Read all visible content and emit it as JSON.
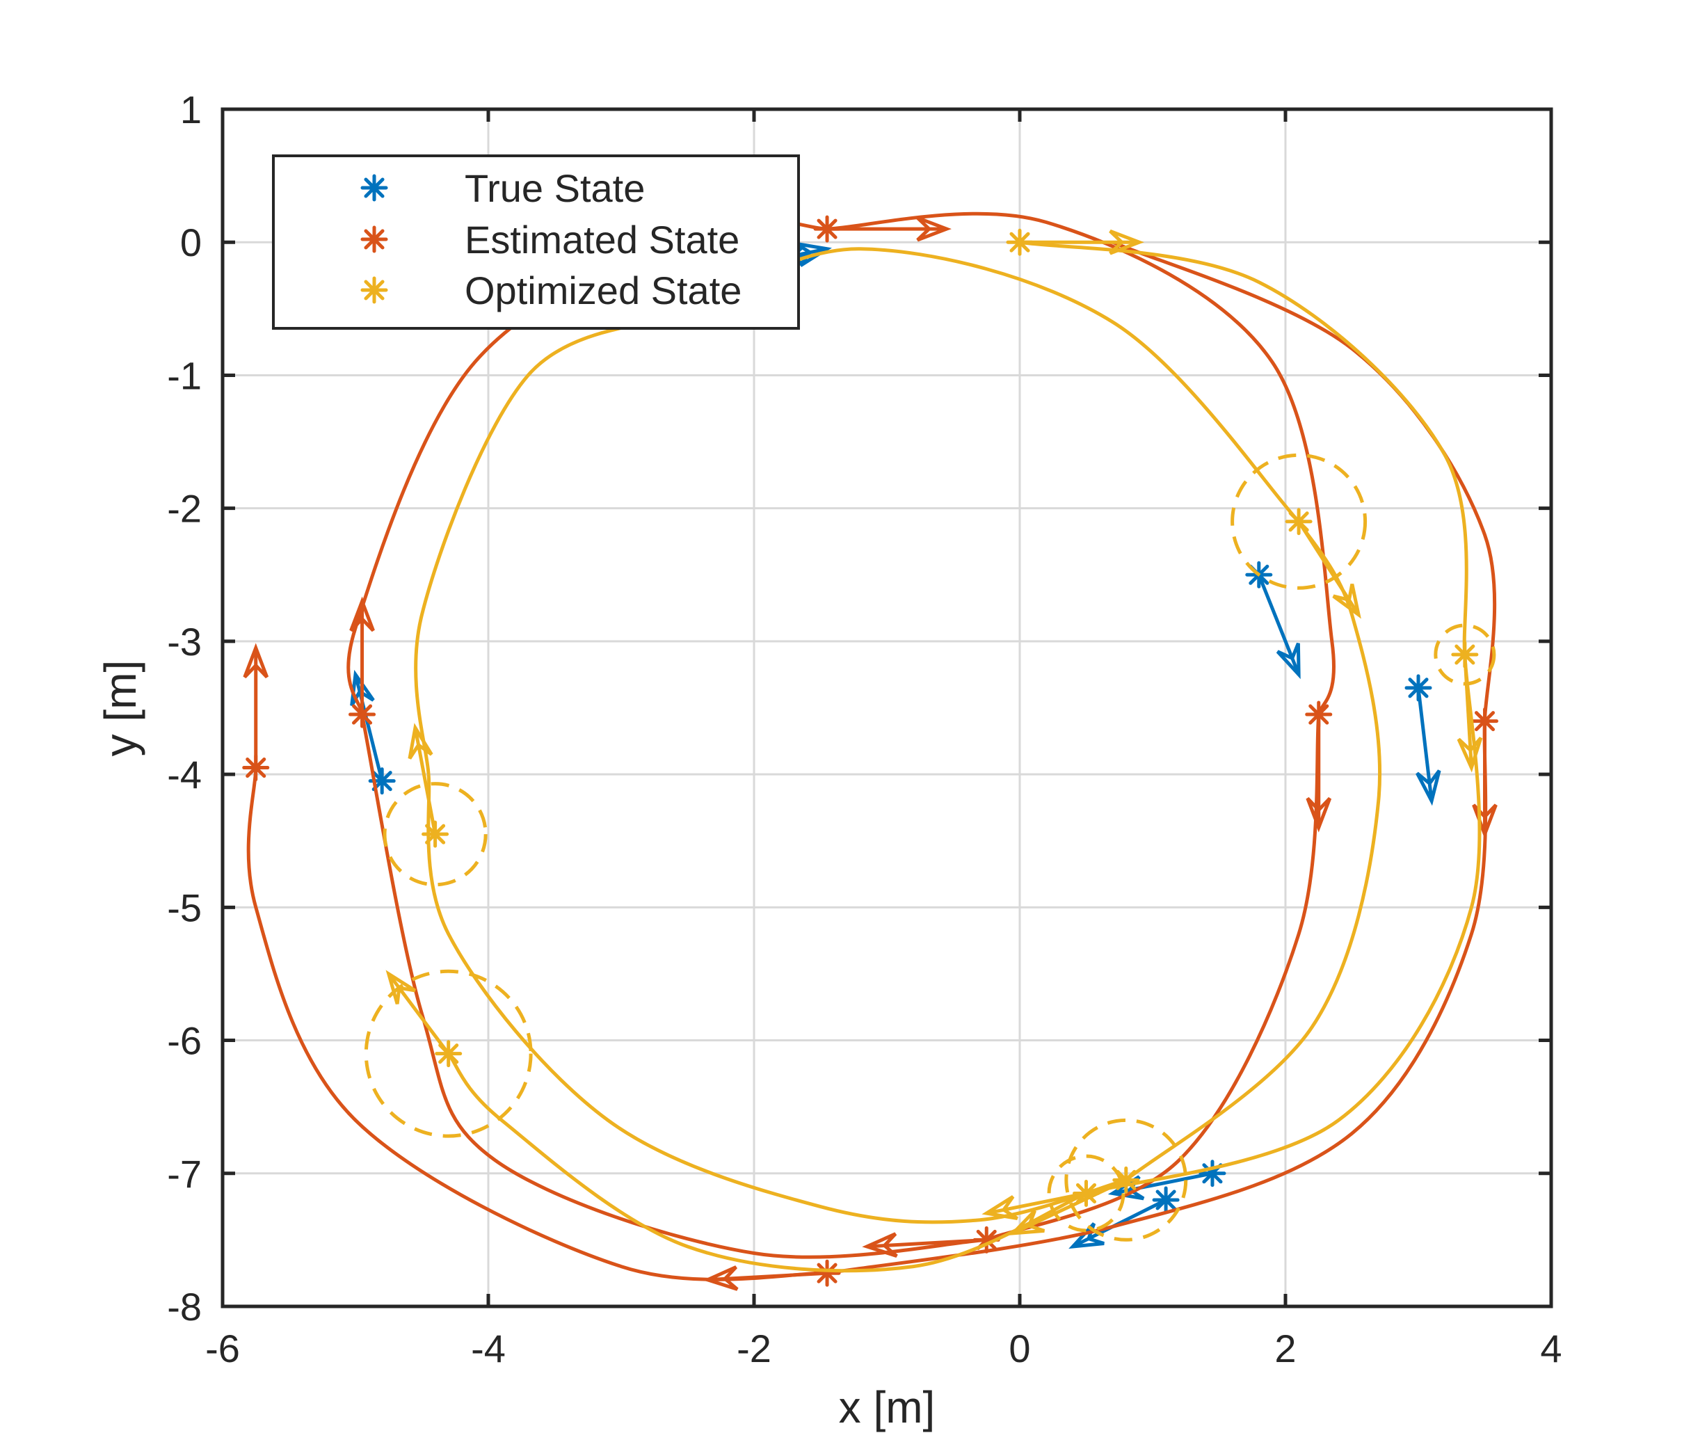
{
  "chart_data": {
    "type": "line",
    "xlabel": "x [m]",
    "ylabel": "y [m]",
    "xlim": [
      -6,
      4
    ],
    "ylim": [
      -8,
      1
    ],
    "xticks": [
      -6,
      -4,
      -2,
      0,
      2,
      4
    ],
    "yticks": [
      1,
      0,
      -1,
      -2,
      -3,
      -4,
      -5,
      -6,
      -7,
      -8
    ],
    "grid": true,
    "legend_position": "top-left",
    "legend": [
      {
        "label": "True State",
        "color": "#0072BD"
      },
      {
        "label": "Estimated State",
        "color": "#D95319"
      },
      {
        "label": "Optimized State",
        "color": "#EDB120"
      }
    ],
    "series": [
      {
        "name": "True State",
        "color": "#0072BD",
        "poses": [
          {
            "x": -1.7,
            "y": -0.1,
            "dx": 0.25,
            "dy": 0.05
          },
          {
            "x": 1.8,
            "y": -2.5,
            "dx": 0.3,
            "dy": -0.75
          },
          {
            "x": 3.0,
            "y": -3.35,
            "dx": 0.1,
            "dy": -0.85
          },
          {
            "x": -4.8,
            "y": -4.05,
            "dx": -0.2,
            "dy": 0.8
          },
          {
            "x": 1.45,
            "y": -7.0,
            "dx": -0.75,
            "dy": -0.15
          },
          {
            "x": 1.1,
            "y": -7.2,
            "dx": -0.7,
            "dy": -0.35
          }
        ]
      },
      {
        "name": "Estimated State",
        "color": "#D95319",
        "poses": [
          {
            "x": -1.45,
            "y": 0.1,
            "dx": 0.9,
            "dy": 0.0
          },
          {
            "x": 2.25,
            "y": -3.55,
            "dx": 0.0,
            "dy": -0.85
          },
          {
            "x": 3.5,
            "y": -3.6,
            "dx": 0.0,
            "dy": -0.85
          },
          {
            "x": -4.95,
            "y": -3.55,
            "dx": 0.0,
            "dy": 0.85
          },
          {
            "x": -5.75,
            "y": -3.95,
            "dx": 0.0,
            "dy": 0.9
          },
          {
            "x": -0.25,
            "y": -7.5,
            "dx": -0.9,
            "dy": -0.05
          },
          {
            "x": -1.45,
            "y": -7.75,
            "dx": -0.9,
            "dy": -0.05
          }
        ],
        "curves": [
          [
            [
              -1.45,
              0.1
            ],
            [
              -2.4,
              0.1
            ],
            [
              -4.1,
              -0.9
            ],
            [
              -5.0,
              -2.9
            ],
            [
              -4.95,
              -3.55
            ]
          ],
          [
            [
              -1.45,
              0.1
            ],
            [
              0.2,
              0.15
            ],
            [
              1.9,
              -0.9
            ],
            [
              2.35,
              -3.0
            ],
            [
              2.25,
              -3.55
            ]
          ],
          [
            [
              2.25,
              -3.55
            ],
            [
              2.1,
              -5.2
            ],
            [
              1.2,
              -6.9
            ],
            [
              -0.25,
              -7.5
            ]
          ],
          [
            [
              -0.25,
              -7.5
            ],
            [
              -2.0,
              -7.6
            ],
            [
              -3.95,
              -6.9
            ],
            [
              -4.5,
              -5.8
            ],
            [
              -4.95,
              -3.55
            ]
          ],
          [
            [
              0.7,
              0.0
            ],
            [
              2.5,
              -0.8
            ],
            [
              3.5,
              -2.2
            ],
            [
              3.5,
              -3.6
            ]
          ],
          [
            [
              3.5,
              -3.6
            ],
            [
              3.4,
              -5.2
            ],
            [
              2.5,
              -6.7
            ],
            [
              0.7,
              -7.4
            ],
            [
              -1.45,
              -7.75
            ]
          ],
          [
            [
              -1.45,
              -7.75
            ],
            [
              -3.0,
              -7.7
            ],
            [
              -5.0,
              -6.6
            ],
            [
              -5.75,
              -5.0
            ],
            [
              -5.75,
              -3.95
            ]
          ]
        ]
      },
      {
        "name": "Optimized State",
        "color": "#EDB120",
        "poses": [
          {
            "x": 0.0,
            "y": 0.0,
            "dx": 0.9,
            "dy": 0.0
          },
          {
            "x": 2.1,
            "y": -2.1,
            "dx": 0.45,
            "dy": -0.7
          },
          {
            "x": 3.35,
            "y": -3.1,
            "dx": 0.05,
            "dy": -0.85
          },
          {
            "x": -4.4,
            "y": -4.45,
            "dx": -0.15,
            "dy": 0.8
          },
          {
            "x": -4.3,
            "y": -6.1,
            "dx": -0.45,
            "dy": 0.6
          },
          {
            "x": 0.5,
            "y": -7.15,
            "dx": -0.75,
            "dy": -0.15
          },
          {
            "x": 0.8,
            "y": -7.05,
            "dx": -0.85,
            "dy": -0.4
          }
        ],
        "uncertainty_radius": [
          0.0,
          0.5,
          0.22,
          0.38,
          0.62,
          0.28,
          0.45
        ],
        "curves": [
          [
            [
              -2.55,
              -0.55
            ],
            [
              -1.2,
              -0.05
            ],
            [
              0.7,
              -0.6
            ],
            [
              2.1,
              -2.1
            ]
          ],
          [
            [
              2.1,
              -2.1
            ],
            [
              2.5,
              -2.8
            ],
            [
              2.7,
              -4.2
            ],
            [
              2.2,
              -5.9
            ],
            [
              0.8,
              -7.05
            ]
          ],
          [
            [
              0.8,
              -7.05
            ],
            [
              -0.3,
              -7.35
            ],
            [
              -1.5,
              -7.25
            ],
            [
              -3.1,
              -6.6
            ],
            [
              -4.3,
              -5.2
            ],
            [
              -4.45,
              -4.0
            ]
          ],
          [
            [
              -4.45,
              -4.0
            ],
            [
              -4.5,
              -2.8
            ],
            [
              -3.7,
              -1.0
            ],
            [
              -2.55,
              -0.55
            ]
          ],
          [
            [
              0.0,
              0.0
            ],
            [
              1.8,
              -0.3
            ],
            [
              3.2,
              -1.6
            ],
            [
              3.35,
              -3.1
            ]
          ],
          [
            [
              3.35,
              -3.1
            ],
            [
              3.4,
              -5.0
            ],
            [
              2.4,
              -6.6
            ],
            [
              0.5,
              -7.15
            ]
          ],
          [
            [
              0.5,
              -7.15
            ],
            [
              -0.8,
              -7.7
            ],
            [
              -2.5,
              -7.55
            ],
            [
              -3.9,
              -6.6
            ],
            [
              -4.3,
              -6.1
            ]
          ]
        ]
      }
    ]
  }
}
